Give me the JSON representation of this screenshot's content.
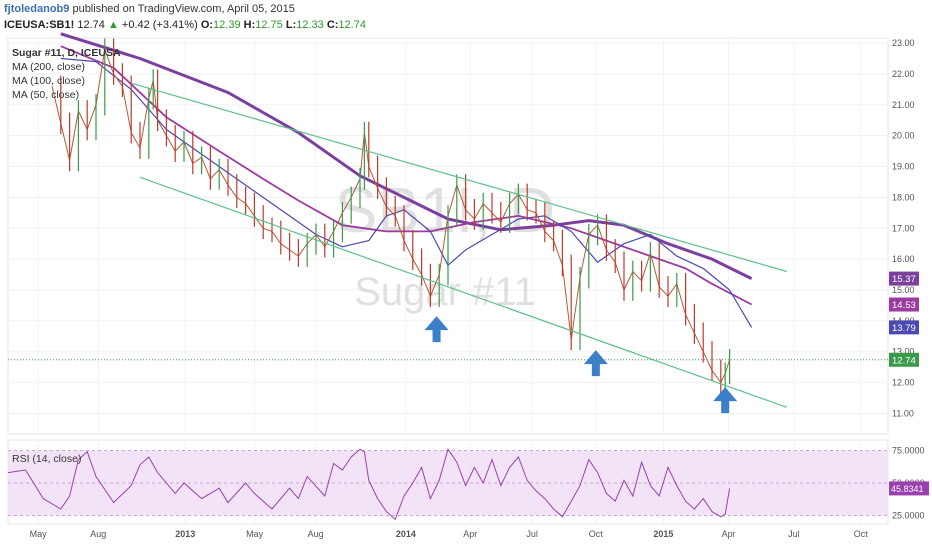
{
  "header": {
    "author": "fjtoledanob9",
    "published": "published on TradingView.com, April 05, 2015",
    "symbol": "ICEUSA:SB1!",
    "price": "12.74",
    "change": "+0.42 (+3.41%)",
    "open_label": "O:",
    "open": "12.39",
    "high_label": "H:",
    "high": "12.75",
    "low_label": "L:",
    "low": "12.33",
    "close_label": "C:",
    "close": "12.74"
  },
  "legend": [
    "Sugar #11, D, ICEUSA",
    "MA (200, close)",
    "MA (100, close)",
    "MA (50, close)"
  ],
  "watermark": {
    "symbol": "SB1!, D",
    "name": "Sugar #11"
  },
  "rsi_label": "RSI (14, close)",
  "colors": {
    "ma200": "#7b3fa0",
    "ma100": "#9c3aa0",
    "ma50": "#4a4ab0",
    "channel": "#5cc08a",
    "arrow": "#3a7fc8",
    "rsi": "#9a3fb0",
    "rsi_band": "#f0dcf5",
    "up": "#3a9a4a",
    "down": "#c0392b"
  },
  "chart_data": {
    "type": "line",
    "x_ticks": [
      "May",
      "Aug",
      "2013",
      "May",
      "Aug",
      "2014",
      "Apr",
      "Jul",
      "Oct",
      "2015",
      "Apr",
      "Jul",
      "Oct"
    ],
    "y_ticks": [
      "23.00",
      "22.00",
      "21.00",
      "20.00",
      "19.00",
      "18.00",
      "17.00",
      "16.00",
      "15.00",
      "14.00",
      "13.00",
      "12.00",
      "11.00"
    ],
    "ylim": [
      10.4,
      23.1
    ],
    "price_labels": [
      {
        "label": "15.37",
        "value": 15.37,
        "color": "#7b3fa0"
      },
      {
        "label": "14.53",
        "value": 14.53,
        "color": "#9c3aa0"
      },
      {
        "label": "13.79",
        "value": 13.79,
        "color": "#4a4ab0"
      },
      {
        "label": "12.74",
        "value": 12.74,
        "color": "#3a9a4a"
      }
    ],
    "series": [
      {
        "name": "MA (200, close)",
        "points": [
          [
            0.06,
            23.3
          ],
          [
            0.15,
            22.5
          ],
          [
            0.25,
            21.4
          ],
          [
            0.33,
            20.1
          ],
          [
            0.4,
            18.7
          ],
          [
            0.45,
            18.0
          ],
          [
            0.5,
            17.3
          ],
          [
            0.56,
            16.95
          ],
          [
            0.62,
            17.1
          ],
          [
            0.66,
            17.25
          ],
          [
            0.7,
            17.1
          ],
          [
            0.75,
            16.5
          ],
          [
            0.8,
            16.0
          ],
          [
            0.845,
            15.37
          ]
        ]
      },
      {
        "name": "MA (100, close)",
        "points": [
          [
            0.06,
            22.9
          ],
          [
            0.12,
            22.2
          ],
          [
            0.18,
            20.6
          ],
          [
            0.24,
            19.5
          ],
          [
            0.29,
            18.6
          ],
          [
            0.33,
            17.9
          ],
          [
            0.38,
            17.1
          ],
          [
            0.43,
            16.9
          ],
          [
            0.48,
            16.9
          ],
          [
            0.53,
            17.2
          ],
          [
            0.58,
            17.4
          ],
          [
            0.64,
            17.0
          ],
          [
            0.68,
            16.6
          ],
          [
            0.72,
            16.2
          ],
          [
            0.77,
            15.7
          ],
          [
            0.8,
            15.2
          ],
          [
            0.845,
            14.53
          ]
        ]
      },
      {
        "name": "MA (50, close)",
        "points": [
          [
            0.06,
            22.5
          ],
          [
            0.1,
            22.4
          ],
          [
            0.14,
            21.5
          ],
          [
            0.18,
            20.2
          ],
          [
            0.22,
            19.4
          ],
          [
            0.27,
            18.4
          ],
          [
            0.31,
            17.6
          ],
          [
            0.35,
            16.8
          ],
          [
            0.38,
            16.4
          ],
          [
            0.41,
            16.6
          ],
          [
            0.43,
            17.4
          ],
          [
            0.45,
            17.6
          ],
          [
            0.48,
            16.9
          ],
          [
            0.5,
            15.8
          ],
          [
            0.52,
            16.3
          ],
          [
            0.55,
            16.8
          ],
          [
            0.58,
            17.3
          ],
          [
            0.61,
            17.4
          ],
          [
            0.64,
            16.9
          ],
          [
            0.67,
            15.9
          ],
          [
            0.7,
            16.5
          ],
          [
            0.73,
            16.8
          ],
          [
            0.76,
            16.1
          ],
          [
            0.79,
            15.7
          ],
          [
            0.82,
            15.0
          ],
          [
            0.845,
            13.79
          ]
        ]
      },
      {
        "name": "Sugar #11",
        "points": [
          [
            0.05,
            21.6
          ],
          [
            0.06,
            20.4
          ],
          [
            0.07,
            19.2
          ],
          [
            0.08,
            20.8
          ],
          [
            0.09,
            20.2
          ],
          [
            0.1,
            21.0
          ],
          [
            0.11,
            22.8
          ],
          [
            0.12,
            22.0
          ],
          [
            0.13,
            21.6
          ],
          [
            0.14,
            20.1
          ],
          [
            0.15,
            19.6
          ],
          [
            0.16,
            21.2
          ],
          [
            0.165,
            21.8
          ],
          [
            0.17,
            20.5
          ],
          [
            0.18,
            20.0
          ],
          [
            0.19,
            19.5
          ],
          [
            0.2,
            19.8
          ],
          [
            0.21,
            19.1
          ],
          [
            0.22,
            19.3
          ],
          [
            0.23,
            18.6
          ],
          [
            0.24,
            18.9
          ],
          [
            0.25,
            18.4
          ],
          [
            0.26,
            18.0
          ],
          [
            0.27,
            17.8
          ],
          [
            0.28,
            17.4
          ],
          [
            0.29,
            17.0
          ],
          [
            0.3,
            16.9
          ],
          [
            0.31,
            16.5
          ],
          [
            0.32,
            16.3
          ],
          [
            0.33,
            16.1
          ],
          [
            0.34,
            16.5
          ],
          [
            0.35,
            16.8
          ],
          [
            0.36,
            16.4
          ],
          [
            0.37,
            16.9
          ],
          [
            0.38,
            17.5
          ],
          [
            0.39,
            18.0
          ],
          [
            0.4,
            18.6
          ],
          [
            0.405,
            20.1
          ],
          [
            0.41,
            19.0
          ],
          [
            0.42,
            18.3
          ],
          [
            0.43,
            17.7
          ],
          [
            0.44,
            17.4
          ],
          [
            0.45,
            16.6
          ],
          [
            0.46,
            16.0
          ],
          [
            0.47,
            15.5
          ],
          [
            0.48,
            14.8
          ],
          [
            0.49,
            15.5
          ],
          [
            0.5,
            17.4
          ],
          [
            0.51,
            18.4
          ],
          [
            0.52,
            17.6
          ],
          [
            0.53,
            17.3
          ],
          [
            0.54,
            17.8
          ],
          [
            0.55,
            17.5
          ],
          [
            0.56,
            17.2
          ],
          [
            0.57,
            17.8
          ],
          [
            0.58,
            18.1
          ],
          [
            0.59,
            17.6
          ],
          [
            0.6,
            17.5
          ],
          [
            0.61,
            16.9
          ],
          [
            0.62,
            16.6
          ],
          [
            0.63,
            15.8
          ],
          [
            0.64,
            13.4
          ],
          [
            0.65,
            15.4
          ],
          [
            0.66,
            16.8
          ],
          [
            0.67,
            17.1
          ],
          [
            0.68,
            16.3
          ],
          [
            0.69,
            15.9
          ],
          [
            0.7,
            15.0
          ],
          [
            0.71,
            15.6
          ],
          [
            0.72,
            15.3
          ],
          [
            0.73,
            16.2
          ],
          [
            0.74,
            15.1
          ],
          [
            0.75,
            14.8
          ],
          [
            0.76,
            15.2
          ],
          [
            0.77,
            14.2
          ],
          [
            0.78,
            13.6
          ],
          [
            0.79,
            13.0
          ],
          [
            0.8,
            12.4
          ],
          [
            0.81,
            12.0
          ],
          [
            0.815,
            12.3
          ],
          [
            0.82,
            12.74
          ]
        ]
      },
      {
        "name": "RSI (14, close)",
        "points": [
          [
            0.0,
            58
          ],
          [
            0.02,
            60
          ],
          [
            0.04,
            38
          ],
          [
            0.06,
            30
          ],
          [
            0.07,
            40
          ],
          [
            0.08,
            68
          ],
          [
            0.09,
            74
          ],
          [
            0.1,
            55
          ],
          [
            0.12,
            35
          ],
          [
            0.14,
            48
          ],
          [
            0.15,
            64
          ],
          [
            0.16,
            70
          ],
          [
            0.17,
            58
          ],
          [
            0.19,
            42
          ],
          [
            0.2,
            50
          ],
          [
            0.22,
            38
          ],
          [
            0.24,
            46
          ],
          [
            0.25,
            35
          ],
          [
            0.27,
            50
          ],
          [
            0.28,
            42
          ],
          [
            0.3,
            30
          ],
          [
            0.32,
            46
          ],
          [
            0.33,
            38
          ],
          [
            0.34,
            55
          ],
          [
            0.36,
            40
          ],
          [
            0.37,
            65
          ],
          [
            0.38,
            60
          ],
          [
            0.39,
            70
          ],
          [
            0.4,
            76
          ],
          [
            0.405,
            74
          ],
          [
            0.41,
            52
          ],
          [
            0.42,
            38
          ],
          [
            0.43,
            28
          ],
          [
            0.44,
            22
          ],
          [
            0.45,
            40
          ],
          [
            0.46,
            50
          ],
          [
            0.47,
            62
          ],
          [
            0.48,
            38
          ],
          [
            0.49,
            52
          ],
          [
            0.5,
            76
          ],
          [
            0.51,
            66
          ],
          [
            0.52,
            48
          ],
          [
            0.53,
            62
          ],
          [
            0.54,
            50
          ],
          [
            0.55,
            68
          ],
          [
            0.56,
            48
          ],
          [
            0.57,
            62
          ],
          [
            0.58,
            70
          ],
          [
            0.59,
            52
          ],
          [
            0.6,
            44
          ],
          [
            0.61,
            38
          ],
          [
            0.62,
            30
          ],
          [
            0.63,
            24
          ],
          [
            0.64,
            36
          ],
          [
            0.65,
            48
          ],
          [
            0.66,
            68
          ],
          [
            0.67,
            58
          ],
          [
            0.68,
            42
          ],
          [
            0.69,
            36
          ],
          [
            0.7,
            52
          ],
          [
            0.71,
            40
          ],
          [
            0.72,
            66
          ],
          [
            0.73,
            48
          ],
          [
            0.74,
            40
          ],
          [
            0.75,
            62
          ],
          [
            0.76,
            48
          ],
          [
            0.77,
            36
          ],
          [
            0.78,
            30
          ],
          [
            0.79,
            38
          ],
          [
            0.8,
            28
          ],
          [
            0.81,
            24
          ],
          [
            0.815,
            26
          ],
          [
            0.82,
            45.83
          ]
        ]
      }
    ],
    "channel": {
      "upper": [
        [
          0.03,
          21.6
        ],
        [
          0.885,
          15.7
        ]
      ],
      "lower": [
        [
          0.15,
          18.65
        ],
        [
          0.885,
          11.2
        ]
      ],
      "middle_top": [
        [
          0.14,
          21.7
        ],
        [
          0.885,
          15.6
        ]
      ]
    },
    "rsi": {
      "label": "45.8341",
      "ticks": [
        "75.0000",
        "50.0000",
        "25.0000"
      ],
      "ylim": [
        20,
        80
      ]
    }
  }
}
